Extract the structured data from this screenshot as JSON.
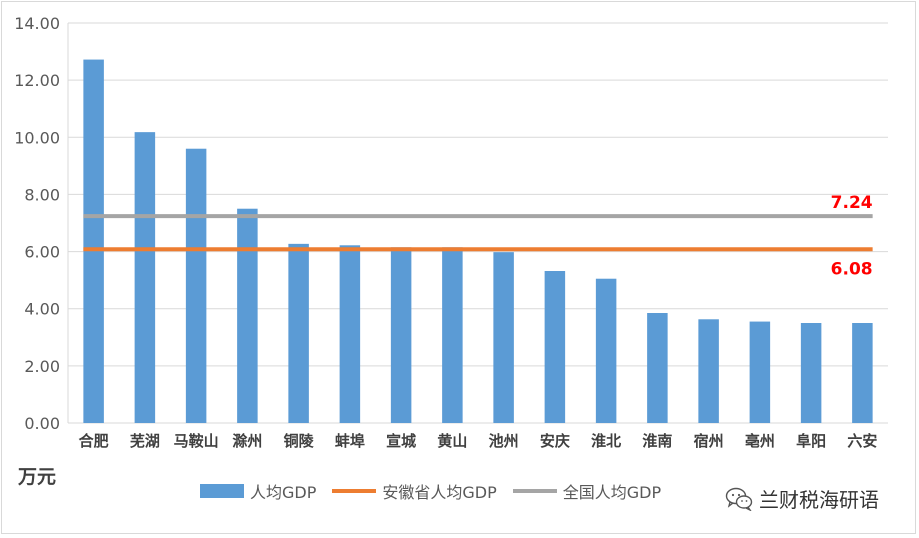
{
  "chart_data": {
    "type": "bar",
    "title": "",
    "xlabel": "",
    "ylabel": "万元",
    "ylim": [
      0,
      14
    ],
    "y_ticks": [
      "0.00",
      "2.00",
      "4.00",
      "6.00",
      "8.00",
      "10.00",
      "12.00",
      "14.00"
    ],
    "grid": true,
    "legend_position": "bottom",
    "categories": [
      "合肥",
      "芜湖",
      "马鞍山",
      "滁州",
      "铜陵",
      "蚌埠",
      "宣城",
      "黄山",
      "池州",
      "安庆",
      "淮北",
      "淮南",
      "宿州",
      "亳州",
      "阜阳",
      "六安"
    ],
    "series": [
      {
        "name": "人均GDP",
        "kind": "bar",
        "color": "#5b9bd5",
        "values": [
          12.72,
          10.18,
          9.6,
          7.5,
          6.27,
          6.22,
          6.15,
          6.15,
          5.98,
          5.32,
          5.05,
          3.85,
          3.63,
          3.55,
          3.5,
          3.5
        ]
      },
      {
        "name": "安徽省人均GDP",
        "kind": "line",
        "color": "#ed7d31",
        "value": 6.08,
        "label": "6.08"
      },
      {
        "name": "全国人均GDP",
        "kind": "line",
        "color": "#a5a5a5",
        "value": 7.24,
        "label": "7.24"
      }
    ],
    "annotation_color": "#ff0000"
  },
  "watermark": {
    "icon": "wechat-icon",
    "text": "兰财税海研语"
  }
}
